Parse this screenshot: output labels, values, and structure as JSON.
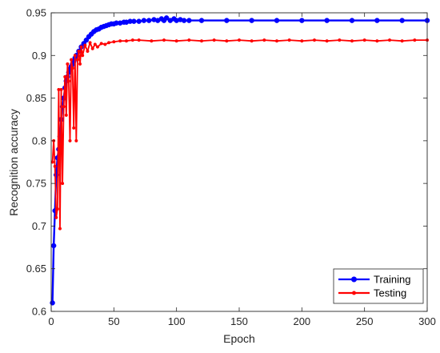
{
  "chart_data": {
    "type": "line",
    "xlabel": "Epoch",
    "ylabel": "Recognition accuracy",
    "xlim": [
      0,
      300
    ],
    "ylim": [
      0.6,
      0.95
    ],
    "xticks": [
      0,
      50,
      100,
      150,
      200,
      250,
      300
    ],
    "yticks": [
      0.6,
      0.65,
      0.7,
      0.75,
      0.8,
      0.85,
      0.9,
      0.95
    ],
    "ytick_labels": [
      "0.6",
      "0.65",
      "0.7",
      "0.75",
      "0.8",
      "0.85",
      "0.9",
      "0.95"
    ],
    "grid": false,
    "legend_position": "bottom-right",
    "series": [
      {
        "name": "Training",
        "color": "#0000ff",
        "marker": "circle",
        "points": [
          [
            1,
            0.61
          ],
          [
            2,
            0.677
          ],
          [
            3,
            0.718
          ],
          [
            4,
            0.76
          ],
          [
            5,
            0.78
          ],
          [
            6,
            0.79
          ],
          [
            7,
            0.805
          ],
          [
            8,
            0.825
          ],
          [
            9,
            0.84
          ],
          [
            10,
            0.85
          ],
          [
            11,
            0.862
          ],
          [
            12,
            0.87
          ],
          [
            13,
            0.875
          ],
          [
            14,
            0.88
          ],
          [
            15,
            0.884
          ],
          [
            16,
            0.887
          ],
          [
            17,
            0.89
          ],
          [
            18,
            0.893
          ],
          [
            19,
            0.897
          ],
          [
            20,
            0.9
          ],
          [
            22,
            0.905
          ],
          [
            24,
            0.91
          ],
          [
            26,
            0.914
          ],
          [
            28,
            0.918
          ],
          [
            30,
            0.922
          ],
          [
            32,
            0.925
          ],
          [
            34,
            0.928
          ],
          [
            36,
            0.93
          ],
          [
            38,
            0.931
          ],
          [
            40,
            0.933
          ],
          [
            42,
            0.934
          ],
          [
            44,
            0.935
          ],
          [
            46,
            0.936
          ],
          [
            48,
            0.937
          ],
          [
            50,
            0.937
          ],
          [
            52,
            0.938
          ],
          [
            55,
            0.938
          ],
          [
            58,
            0.939
          ],
          [
            60,
            0.939
          ],
          [
            63,
            0.94
          ],
          [
            66,
            0.94
          ],
          [
            70,
            0.94
          ],
          [
            74,
            0.941
          ],
          [
            78,
            0.941
          ],
          [
            82,
            0.942
          ],
          [
            85,
            0.941
          ],
          [
            88,
            0.943
          ],
          [
            90,
            0.941
          ],
          [
            92,
            0.944
          ],
          [
            95,
            0.941
          ],
          [
            98,
            0.943
          ],
          [
            100,
            0.941
          ],
          [
            103,
            0.942
          ],
          [
            106,
            0.941
          ],
          [
            110,
            0.941
          ],
          [
            120,
            0.941
          ],
          [
            140,
            0.941
          ],
          [
            160,
            0.941
          ],
          [
            180,
            0.941
          ],
          [
            200,
            0.941
          ],
          [
            220,
            0.941
          ],
          [
            240,
            0.941
          ],
          [
            260,
            0.941
          ],
          [
            280,
            0.941
          ],
          [
            300,
            0.941
          ]
        ]
      },
      {
        "name": "Testing",
        "color": "#ff0000",
        "marker": "dot",
        "points": [
          [
            1,
            0.775
          ],
          [
            2,
            0.8
          ],
          [
            3,
            0.77
          ],
          [
            4,
            0.71
          ],
          [
            5,
            0.72
          ],
          [
            6,
            0.86
          ],
          [
            7,
            0.697
          ],
          [
            8,
            0.86
          ],
          [
            9,
            0.75
          ],
          [
            10,
            0.84
          ],
          [
            11,
            0.875
          ],
          [
            12,
            0.83
          ],
          [
            13,
            0.89
          ],
          [
            14,
            0.87
          ],
          [
            15,
            0.8
          ],
          [
            16,
            0.895
          ],
          [
            17,
            0.885
          ],
          [
            18,
            0.815
          ],
          [
            19,
            0.9
          ],
          [
            20,
            0.8
          ],
          [
            21,
            0.895
          ],
          [
            22,
            0.905
          ],
          [
            23,
            0.89
          ],
          [
            24,
            0.91
          ],
          [
            25,
            0.9
          ],
          [
            27,
            0.912
          ],
          [
            29,
            0.905
          ],
          [
            31,
            0.915
          ],
          [
            33,
            0.908
          ],
          [
            35,
            0.913
          ],
          [
            37,
            0.91
          ],
          [
            40,
            0.914
          ],
          [
            43,
            0.913
          ],
          [
            46,
            0.915
          ],
          [
            50,
            0.916
          ],
          [
            55,
            0.917
          ],
          [
            60,
            0.917
          ],
          [
            65,
            0.918
          ],
          [
            70,
            0.918
          ],
          [
            80,
            0.917
          ],
          [
            90,
            0.918
          ],
          [
            100,
            0.917
          ],
          [
            110,
            0.918
          ],
          [
            120,
            0.917
          ],
          [
            130,
            0.918
          ],
          [
            140,
            0.917
          ],
          [
            150,
            0.918
          ],
          [
            160,
            0.917
          ],
          [
            170,
            0.918
          ],
          [
            180,
            0.917
          ],
          [
            190,
            0.918
          ],
          [
            200,
            0.917
          ],
          [
            210,
            0.918
          ],
          [
            220,
            0.917
          ],
          [
            230,
            0.918
          ],
          [
            240,
            0.917
          ],
          [
            250,
            0.918
          ],
          [
            260,
            0.917
          ],
          [
            270,
            0.918
          ],
          [
            280,
            0.917
          ],
          [
            290,
            0.918
          ],
          [
            300,
            0.918
          ]
        ]
      }
    ]
  }
}
